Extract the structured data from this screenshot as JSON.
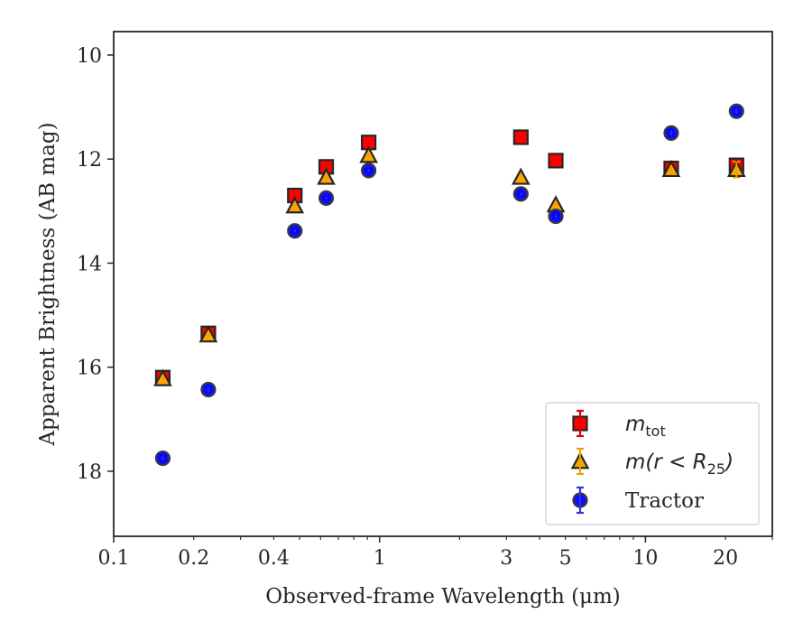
{
  "chart_data": {
    "type": "scatter",
    "title": "",
    "xlabel": "Observed-frame Wavelength (μm)",
    "ylabel": "Apparent Brightness (AB mag)",
    "xscale": "log",
    "xlim": [
      0.1,
      30
    ],
    "ylim": [
      19.25,
      9.55
    ],
    "y_inverted": true,
    "grid": false,
    "legend_position": "lower-right",
    "x_ticks": [
      {
        "value": 0.1,
        "label": "0.1"
      },
      {
        "value": 0.2,
        "label": "0.2"
      },
      {
        "value": 0.4,
        "label": "0.4"
      },
      {
        "value": 1,
        "label": "1"
      },
      {
        "value": 3,
        "label": "3"
      },
      {
        "value": 5,
        "label": "5"
      },
      {
        "value": 10,
        "label": "10"
      },
      {
        "value": 20,
        "label": "20"
      }
    ],
    "y_ticks": [
      {
        "value": 10,
        "label": "10"
      },
      {
        "value": 12,
        "label": "12"
      },
      {
        "value": 14,
        "label": "14"
      },
      {
        "value": 16,
        "label": "16"
      },
      {
        "value": 18,
        "label": "18"
      }
    ],
    "series": [
      {
        "name": "m_tot",
        "legend_main": "m",
        "legend_sub": "tot",
        "marker": "square",
        "color": "#ff0000",
        "errcolor": "#e00000",
        "x": [
          0.153,
          0.227,
          0.48,
          0.63,
          0.91,
          3.4,
          4.6,
          12.5,
          22.0
        ],
        "y": [
          16.2,
          15.35,
          12.7,
          12.15,
          11.68,
          11.58,
          12.03,
          12.18,
          12.12
        ],
        "yerr": [
          0.05,
          0.05,
          0.03,
          0.03,
          0.03,
          0.03,
          0.03,
          0.05,
          0.08
        ]
      },
      {
        "name": "m(r < R_25)",
        "legend_main": "m(r < R",
        "legend_sub": "25",
        "legend_tail": ")",
        "marker": "triangle",
        "color": "#ffa500",
        "errcolor": "#f0a000",
        "x": [
          0.153,
          0.227,
          0.48,
          0.63,
          0.91,
          3.4,
          4.6,
          12.5,
          22.0
        ],
        "y": [
          16.22,
          15.38,
          12.9,
          12.35,
          11.93,
          12.35,
          12.88,
          12.2,
          12.2
        ],
        "yerr": [
          0.05,
          0.05,
          0.03,
          0.03,
          0.03,
          0.03,
          0.03,
          0.05,
          0.15
        ]
      },
      {
        "name": "Tractor",
        "legend_main": "Tractor",
        "marker": "circle",
        "color": "#0000ff",
        "errcolor": "#3030e0",
        "x": [
          0.153,
          0.227,
          0.48,
          0.63,
          0.91,
          3.4,
          4.6,
          12.5,
          22.0
        ],
        "y": [
          17.75,
          16.43,
          13.38,
          12.75,
          12.22,
          12.67,
          13.1,
          11.5,
          11.08
        ],
        "yerr": [
          0.05,
          0.05,
          0.03,
          0.03,
          0.03,
          0.03,
          0.03,
          0.05,
          0.05
        ]
      }
    ]
  }
}
